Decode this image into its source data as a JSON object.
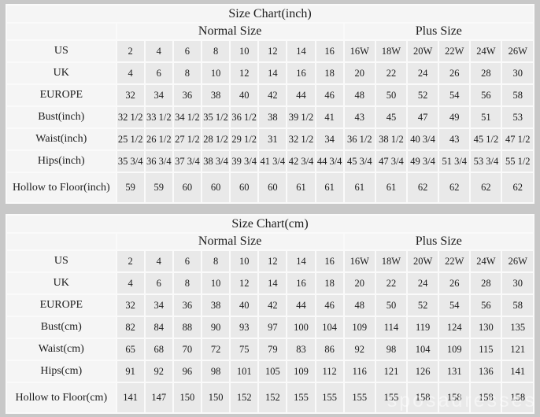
{
  "page": {
    "background_color": "#c8c8c8",
    "cell_color": "#e9e9e9",
    "header_color": "#f5f5f5",
    "watermark": "sposadresses"
  },
  "tables": [
    {
      "title": "Size Chart(inch)",
      "normal_header": "Normal Size",
      "plus_header": "Plus Size",
      "rows": [
        {
          "label": "US",
          "values": [
            "2",
            "4",
            "6",
            "8",
            "10",
            "12",
            "14",
            "16",
            "16W",
            "18W",
            "20W",
            "22W",
            "24W",
            "26W"
          ]
        },
        {
          "label": "UK",
          "values": [
            "4",
            "6",
            "8",
            "10",
            "12",
            "14",
            "16",
            "18",
            "20",
            "22",
            "24",
            "26",
            "28",
            "30"
          ]
        },
        {
          "label": "EUROPE",
          "values": [
            "32",
            "34",
            "36",
            "38",
            "40",
            "42",
            "44",
            "46",
            "48",
            "50",
            "52",
            "54",
            "56",
            "58"
          ]
        },
        {
          "label": "Bust(inch)",
          "values": [
            "32 1/2",
            "33 1/2",
            "34 1/2",
            "35 1/2",
            "36 1/2",
            "38",
            "39 1/2",
            "41",
            "43",
            "45",
            "47",
            "49",
            "51",
            "53"
          ]
        },
        {
          "label": "Waist(inch)",
          "values": [
            "25 1/2",
            "26 1/2",
            "27 1/2",
            "28 1/2",
            "29 1/2",
            "31",
            "32 1/2",
            "34",
            "36 1/2",
            "38 1/2",
            "40 3/4",
            "43",
            "45 1/2",
            "47 1/2"
          ]
        },
        {
          "label": "Hips(inch)",
          "values": [
            "35 3/4",
            "36 3/4",
            "37 3/4",
            "38 3/4",
            "39 3/4",
            "41 3/4",
            "42 3/4",
            "44 3/4",
            "45 3/4",
            "47 3/4",
            "49 3/4",
            "51 3/4",
            "53 3/4",
            "55 1/2"
          ]
        },
        {
          "label": "Hollow to Floor(inch)",
          "values": [
            "59",
            "59",
            "60",
            "60",
            "60",
            "60",
            "61",
            "61",
            "61",
            "61",
            "62",
            "62",
            "62",
            "62"
          ]
        }
      ]
    },
    {
      "title": "Size Chart(cm)",
      "normal_header": "Normal Size",
      "plus_header": "Plus Size",
      "rows": [
        {
          "label": "US",
          "values": [
            "2",
            "4",
            "6",
            "8",
            "10",
            "12",
            "14",
            "16",
            "16W",
            "18W",
            "20W",
            "22W",
            "24W",
            "26W"
          ]
        },
        {
          "label": "UK",
          "values": [
            "4",
            "6",
            "8",
            "10",
            "12",
            "14",
            "16",
            "18",
            "20",
            "22",
            "24",
            "26",
            "28",
            "30"
          ]
        },
        {
          "label": "EUROPE",
          "values": [
            "32",
            "34",
            "36",
            "38",
            "40",
            "42",
            "44",
            "46",
            "48",
            "50",
            "52",
            "54",
            "56",
            "58"
          ]
        },
        {
          "label": "Bust(cm)",
          "values": [
            "82",
            "84",
            "88",
            "90",
            "93",
            "97",
            "100",
            "104",
            "109",
            "114",
            "119",
            "124",
            "130",
            "135"
          ]
        },
        {
          "label": "Waist(cm)",
          "values": [
            "65",
            "68",
            "70",
            "72",
            "75",
            "79",
            "83",
            "86",
            "92",
            "98",
            "104",
            "109",
            "115",
            "121"
          ]
        },
        {
          "label": "Hips(cm)",
          "values": [
            "91",
            "92",
            "96",
            "98",
            "101",
            "105",
            "109",
            "112",
            "116",
            "121",
            "126",
            "131",
            "136",
            "141"
          ]
        },
        {
          "label": "Hollow to Floor(cm)",
          "values": [
            "141",
            "147",
            "150",
            "150",
            "152",
            "152",
            "155",
            "155",
            "155",
            "155",
            "158",
            "158",
            "158",
            "158"
          ]
        }
      ]
    }
  ]
}
